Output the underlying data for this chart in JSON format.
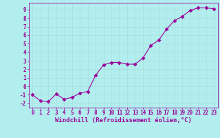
{
  "x": [
    0,
    1,
    2,
    3,
    4,
    5,
    6,
    7,
    8,
    9,
    10,
    11,
    12,
    13,
    14,
    15,
    16,
    17,
    18,
    19,
    20,
    21,
    22,
    23
  ],
  "y": [
    -1.0,
    -1.7,
    -1.8,
    -0.9,
    -1.5,
    -1.3,
    -0.8,
    -0.6,
    1.3,
    2.5,
    2.8,
    2.8,
    2.6,
    2.6,
    3.3,
    4.8,
    5.4,
    6.7,
    7.7,
    8.2,
    8.9,
    9.2,
    9.2,
    9.1
  ],
  "line_color": "#990099",
  "marker": "D",
  "marker_size": 2.5,
  "bg_color": "#b2eeee",
  "grid_color": "#aadddd",
  "xlabel": "Windchill (Refroidissement éolien,°C)",
  "ylabel_ticks": [
    "-2",
    "-1",
    "0",
    "1",
    "2",
    "3",
    "4",
    "5",
    "6",
    "7",
    "8",
    "9"
  ],
  "yticks": [
    -2,
    -1,
    0,
    1,
    2,
    3,
    4,
    5,
    6,
    7,
    8,
    9
  ],
  "ylim": [
    -2.5,
    9.8
  ],
  "xlim": [
    -0.5,
    23.5
  ],
  "xticks": [
    0,
    1,
    2,
    3,
    4,
    5,
    6,
    7,
    8,
    9,
    10,
    11,
    12,
    13,
    14,
    15,
    16,
    17,
    18,
    19,
    20,
    21,
    22,
    23
  ],
  "tick_color": "#990099",
  "label_color": "#990099",
  "spine_color": "#990099",
  "tick_fontsize": 5.5,
  "xlabel_fontsize": 6.5
}
